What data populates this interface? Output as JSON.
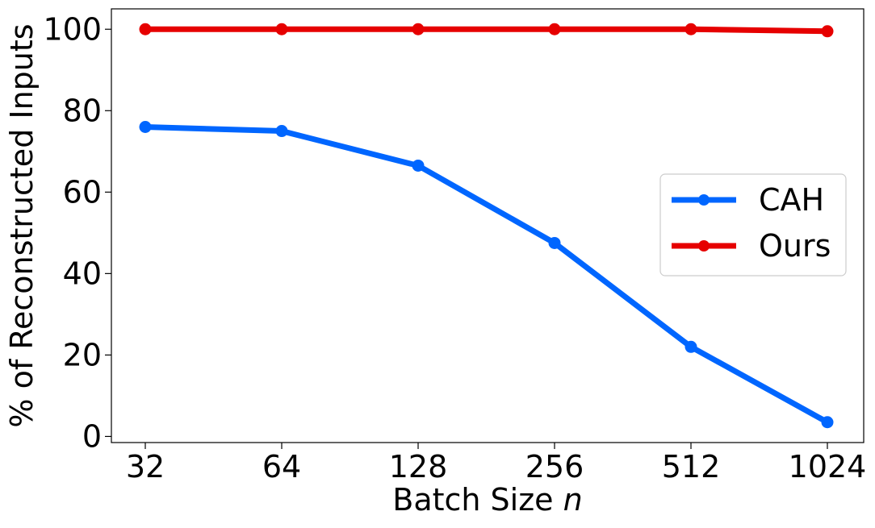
{
  "chart_data": {
    "type": "line",
    "x_tick_labels": [
      "32",
      "64",
      "128",
      "256",
      "512",
      "1024"
    ],
    "x": [
      32,
      64,
      128,
      256,
      512,
      1024
    ],
    "x_scale": "log2",
    "y_ticks": [
      0,
      20,
      40,
      60,
      80,
      100
    ],
    "y_tick_labels": [
      "0",
      "20",
      "40",
      "60",
      "80",
      "100"
    ],
    "ylim": [
      -1.5,
      105
    ],
    "xlabel_main": "Batch Size ",
    "xlabel_var": "n",
    "ylabel": "% of Reconstructed Inputs",
    "grid": false,
    "legend_position": "center-right",
    "series": [
      {
        "name": "CAH",
        "color": "#0066ff",
        "values": [
          76,
          75,
          66.5,
          47.5,
          22,
          3.5
        ]
      },
      {
        "name": "Ours",
        "color": "#e60000",
        "values": [
          100,
          100,
          100,
          100,
          100,
          99.5
        ]
      }
    ]
  }
}
